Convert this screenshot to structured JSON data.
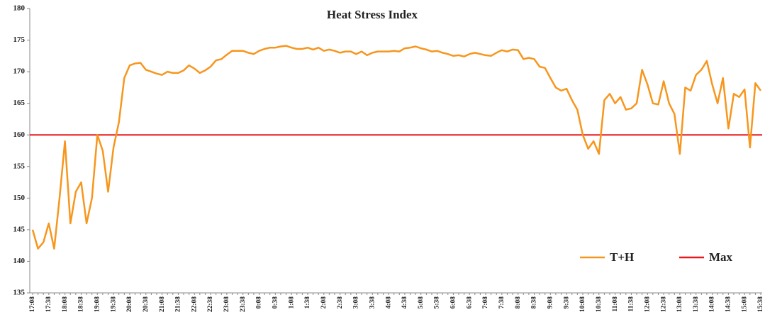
{
  "chart_data": {
    "type": "line",
    "title": "Heat Stress Index",
    "categories": [
      "17:08",
      null,
      null,
      "17:38",
      null,
      null,
      "18:08",
      null,
      null,
      "18:38",
      null,
      null,
      "19:08",
      null,
      null,
      "19:38",
      null,
      null,
      "20:08",
      null,
      null,
      "20:38",
      null,
      null,
      "21:08",
      null,
      null,
      "21:38",
      null,
      null,
      "22:08",
      null,
      null,
      "22:38",
      null,
      null,
      "23:08",
      null,
      null,
      "23:38",
      null,
      null,
      "0:08",
      null,
      null,
      "0:38",
      null,
      null,
      "1:08",
      null,
      null,
      "1:38",
      null,
      null,
      "2:08",
      null,
      null,
      "2:38",
      null,
      null,
      "3:08",
      null,
      null,
      "3:38",
      null,
      null,
      "4:08",
      null,
      null,
      "4:38",
      null,
      null,
      "5:08",
      null,
      null,
      "5:38",
      null,
      null,
      "6:08",
      null,
      null,
      "6:38",
      null,
      null,
      "7:08",
      null,
      null,
      "7:38",
      null,
      null,
      "8:08",
      null,
      null,
      "8:38",
      null,
      null,
      "9:08",
      null,
      null,
      "9:38",
      null,
      null,
      "10:08",
      null,
      null,
      "10:38",
      null,
      null,
      "11:08",
      null,
      null,
      "11:38",
      null,
      null,
      "12:08",
      null,
      null,
      "12:38",
      null,
      null,
      "13:08",
      null,
      null,
      "13:38",
      null,
      null,
      "14:08",
      null,
      null,
      "14:38",
      null,
      null,
      "15:08",
      null,
      null,
      "15:38"
    ],
    "series": [
      {
        "name": "T+H",
        "color": "#f7961d",
        "values": [
          145,
          142,
          143,
          146,
          142,
          150,
          159,
          146,
          151,
          152.5,
          146,
          150,
          160,
          157.5,
          151,
          158,
          162,
          169,
          171,
          171.3,
          171.4,
          170.3,
          170,
          169.7,
          169.5,
          170,
          169.8,
          169.8,
          170.2,
          171,
          170.5,
          169.8,
          170.2,
          170.8,
          171.8,
          172,
          172.7,
          173.3,
          173.3,
          173.3,
          173,
          172.8,
          173.3,
          173.6,
          173.8,
          173.8,
          174,
          174.1,
          173.8,
          173.6,
          173.6,
          173.8,
          173.5,
          173.8,
          173.3,
          173.5,
          173.3,
          173,
          173.2,
          173.2,
          172.8,
          173.2,
          172.6,
          173,
          173.2,
          173.2,
          173.2,
          173.3,
          173.2,
          173.7,
          173.8,
          174,
          173.7,
          173.5,
          173.2,
          173.3,
          173,
          172.8,
          172.5,
          172.6,
          172.4,
          172.8,
          173,
          172.8,
          172.6,
          172.5,
          173,
          173.4,
          173.2,
          173.5,
          173.4,
          172,
          172.2,
          172,
          170.8,
          170.6,
          169,
          167.5,
          167,
          167.3,
          165.5,
          164,
          160,
          157.8,
          159,
          157,
          165.5,
          166.5,
          165,
          166,
          164,
          164.2,
          165,
          170.3,
          168,
          165,
          164.8,
          168.5,
          165,
          163.3,
          157,
          167.5,
          167,
          169.5,
          170.3,
          171.7,
          168,
          165,
          169,
          161,
          166.5,
          166,
          167.2,
          158,
          168.2,
          167
        ]
      }
    ],
    "reference_line": {
      "name": "Max",
      "value": 160,
      "color": "#e8191b"
    },
    "ylim": [
      135,
      180
    ],
    "yticks": [
      135,
      140,
      145,
      150,
      155,
      160,
      165,
      170,
      175,
      180
    ],
    "grid": false
  }
}
